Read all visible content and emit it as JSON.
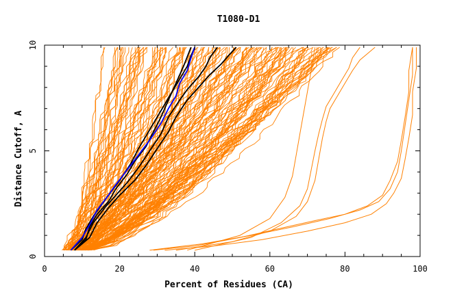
{
  "chart_data": {
    "type": "line",
    "title": "T1080-D1",
    "xlabel": "Percent of Residues (CA)",
    "ylabel": "Distance Cutoff, A",
    "xlim": [
      0,
      100
    ],
    "ylim": [
      0,
      10
    ],
    "x_ticks": [
      "0",
      "20",
      "40",
      "60",
      "80",
      "100"
    ],
    "y_ticks": [
      "0",
      "5",
      "10"
    ],
    "grid": false,
    "legend": "none",
    "colors": {
      "bulk": "#ff8000",
      "highlight_dark": "#000000",
      "highlight_blue": "#0000ff",
      "axis": "#000000"
    },
    "series": [
      {
        "group": "black",
        "x": [
          7,
          10,
          11,
          13,
          15,
          17,
          20,
          23,
          25,
          27,
          30,
          32,
          34,
          36,
          38,
          39,
          40
        ],
        "y": [
          0.3,
          0.8,
          1.3,
          1.9,
          2.4,
          2.9,
          3.6,
          4.4,
          5.1,
          5.7,
          6.6,
          7.2,
          7.8,
          8.4,
          9.0,
          9.5,
          9.9
        ]
      },
      {
        "group": "black",
        "x": [
          8,
          11,
          12,
          14,
          17,
          19,
          22,
          24,
          27,
          29,
          31,
          33,
          35,
          37,
          39
        ],
        "y": [
          0.3,
          0.8,
          1.4,
          2.0,
          2.6,
          3.2,
          3.9,
          4.5,
          5.2,
          5.9,
          6.6,
          7.4,
          8.2,
          9.0,
          9.9
        ]
      },
      {
        "group": "black",
        "x": [
          8,
          11,
          13,
          16,
          19,
          22,
          25,
          28,
          31,
          33,
          36,
          38,
          41,
          43,
          44,
          46
        ],
        "y": [
          0.3,
          0.9,
          1.6,
          2.3,
          2.9,
          3.5,
          4.2,
          5.0,
          5.8,
          6.6,
          7.4,
          7.9,
          8.5,
          9.0,
          9.4,
          9.9
        ]
      },
      {
        "group": "black",
        "x": [
          8,
          12,
          14,
          17,
          20,
          24,
          27,
          30,
          33,
          35,
          38,
          41,
          44,
          47,
          49,
          51
        ],
        "y": [
          0.3,
          0.9,
          1.6,
          2.3,
          2.9,
          3.6,
          4.3,
          5.1,
          5.9,
          6.6,
          7.4,
          8.0,
          8.6,
          9.1,
          9.5,
          9.9
        ]
      },
      {
        "group": "blue",
        "x": [
          7,
          10,
          12,
          14,
          17,
          19,
          22,
          25,
          28,
          31,
          33,
          35,
          36,
          38,
          39,
          40
        ],
        "y": [
          0.3,
          0.9,
          1.5,
          2.2,
          2.9,
          3.4,
          4.1,
          4.8,
          5.5,
          6.3,
          7.0,
          7.6,
          8.2,
          8.8,
          9.4,
          9.9
        ]
      },
      {
        "group": "outlier",
        "x": [
          29,
          40,
          52,
          62,
          72,
          80,
          86,
          90,
          92,
          94,
          95,
          96,
          97,
          97,
          98
        ],
        "y": [
          0.3,
          0.5,
          0.9,
          1.3,
          1.7,
          2.0,
          2.4,
          2.9,
          3.6,
          4.5,
          5.5,
          6.6,
          7.8,
          8.8,
          9.9
        ]
      },
      {
        "group": "outlier",
        "x": [
          32,
          45,
          58,
          70,
          80,
          87,
          91,
          93,
          95,
          96,
          97,
          98,
          98,
          99,
          99
        ],
        "y": [
          0.3,
          0.5,
          0.8,
          1.2,
          1.6,
          2.0,
          2.5,
          3.0,
          3.7,
          4.6,
          5.6,
          6.7,
          7.8,
          8.9,
          9.9
        ]
      },
      {
        "group": "outlier",
        "x": [
          28,
          42,
          55,
          66,
          76,
          84,
          89,
          92,
          94,
          95,
          96,
          97,
          98,
          98
        ],
        "y": [
          0.3,
          0.6,
          1.0,
          1.4,
          1.8,
          2.2,
          2.6,
          3.2,
          4.0,
          5.0,
          6.2,
          7.4,
          8.6,
          9.9
        ]
      },
      {
        "group": "outlier",
        "x": [
          35,
          50,
          60,
          67,
          70,
          72,
          73,
          74,
          75,
          76,
          78,
          80,
          82,
          84,
          86,
          88
        ],
        "y": [
          0.3,
          0.7,
          1.2,
          1.9,
          2.6,
          3.6,
          4.6,
          5.6,
          6.4,
          7.0,
          7.6,
          8.2,
          8.8,
          9.3,
          9.6,
          9.9
        ]
      },
      {
        "group": "outlier",
        "x": [
          40,
          55,
          63,
          68,
          70,
          71,
          72,
          73,
          74,
          75,
          77,
          79,
          81,
          82,
          84
        ],
        "y": [
          0.3,
          0.9,
          1.6,
          2.4,
          3.2,
          4.1,
          5.0,
          5.8,
          6.5,
          7.1,
          7.7,
          8.3,
          8.9,
          9.4,
          9.9
        ]
      },
      {
        "group": "outlier",
        "x": [
          38,
          52,
          60,
          64,
          66,
          67,
          68,
          69,
          70,
          71,
          72
        ],
        "y": [
          0.3,
          1.0,
          1.8,
          2.8,
          3.8,
          4.8,
          5.8,
          6.8,
          7.8,
          8.8,
          9.9
        ]
      }
    ]
  }
}
